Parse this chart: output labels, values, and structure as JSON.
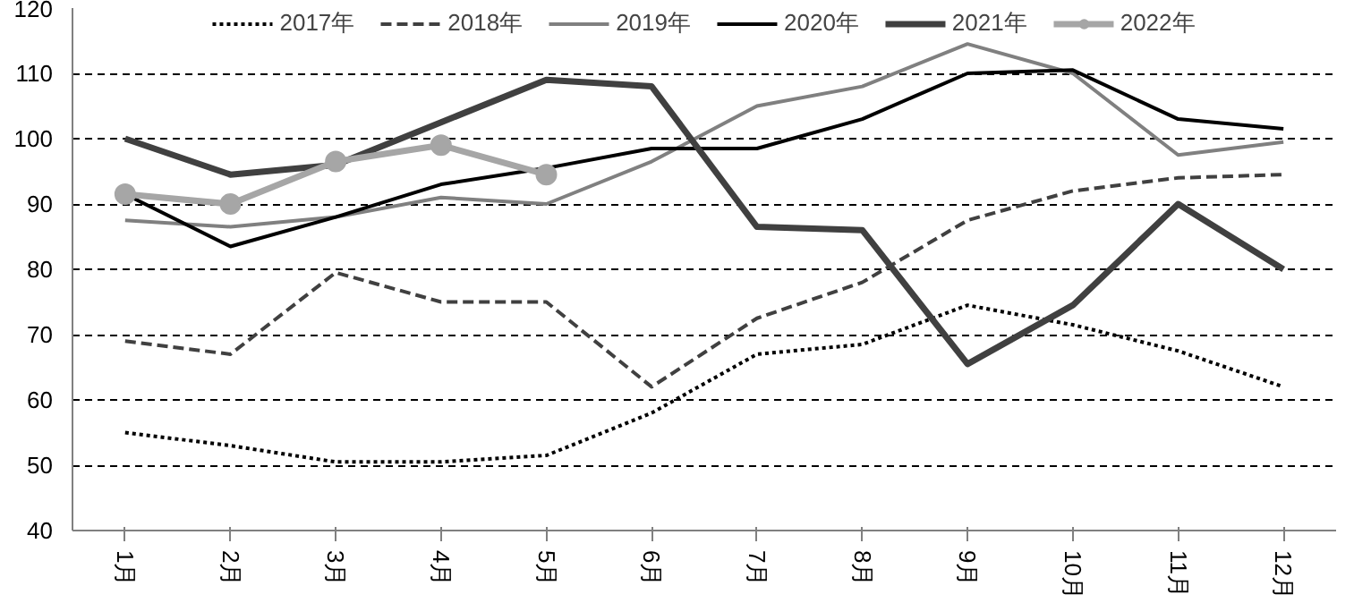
{
  "chart_data": {
    "type": "line",
    "categories": [
      "1月",
      "2月",
      "3月",
      "4月",
      "5月",
      "6月",
      "7月",
      "8月",
      "9月",
      "10月",
      "11月",
      "12月"
    ],
    "ylim": [
      40,
      120
    ],
    "yticks": [
      40,
      50,
      60,
      70,
      80,
      90,
      100,
      110,
      120
    ],
    "grid": "y",
    "legend": "top",
    "series": [
      {
        "name": "2017年",
        "color": "#000000",
        "line_style": "dotted",
        "values": [
          55,
          53,
          50.5,
          50.5,
          51.5,
          58,
          67,
          68.5,
          74.5,
          71.5,
          67.5,
          62
        ]
      },
      {
        "name": "2018年",
        "color": "#404040",
        "line_style": "dashed",
        "values": [
          69,
          67,
          79.5,
          75,
          75,
          62,
          72.5,
          78,
          87.5,
          92,
          94,
          94.5
        ]
      },
      {
        "name": "2019年",
        "color": "#808080",
        "line_style": "solid",
        "values": [
          87.5,
          86.5,
          88,
          91,
          90,
          96.5,
          105,
          108,
          114.5,
          110,
          97.5,
          99.5
        ]
      },
      {
        "name": "2020年",
        "color": "#000000",
        "line_style": "solid",
        "values": [
          91.5,
          83.5,
          88,
          93,
          95.5,
          98.5,
          98.5,
          103,
          110,
          110.5,
          103,
          101.5
        ]
      },
      {
        "name": "2021年",
        "color": "#404040",
        "line_style": "solid",
        "values": [
          100,
          94.5,
          96,
          102.5,
          109,
          108,
          86.5,
          86,
          65.5,
          74.5,
          90,
          80
        ]
      },
      {
        "name": "2022年",
        "color": "#a6a6a6",
        "line_style": "solid",
        "marker": "circle",
        "values": [
          91.5,
          90,
          96.5,
          99,
          94.5,
          null,
          null,
          null,
          null,
          null,
          null,
          null
        ]
      }
    ]
  }
}
